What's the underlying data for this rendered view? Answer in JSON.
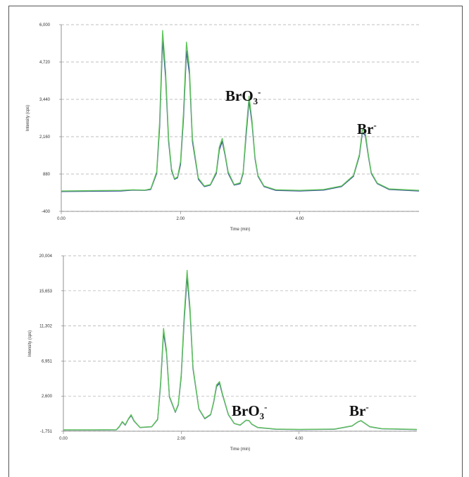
{
  "chart_data": [
    {
      "type": "line",
      "x": [
        0,
        0.5,
        1.0,
        1.2,
        1.4,
        1.5,
        1.6,
        1.65,
        1.7,
        1.75,
        1.8,
        1.85,
        1.9,
        1.95,
        2.0,
        2.05,
        2.1,
        2.15,
        2.2,
        2.3,
        2.4,
        2.5,
        2.6,
        2.65,
        2.7,
        2.75,
        2.8,
        2.9,
        3.0,
        3.05,
        3.1,
        3.15,
        3.2,
        3.25,
        3.3,
        3.4,
        3.6,
        4.0,
        4.4,
        4.7,
        4.9,
        5.0,
        5.05,
        5.1,
        5.15,
        5.2,
        5.3,
        5.5,
        6.0
      ],
      "series": [
        {
          "color": "#3a4f9c",
          "values": [
            280,
            290,
            300,
            330,
            320,
            350,
            900,
            2500,
            5500,
            4200,
            2000,
            1000,
            700,
            750,
            1200,
            2800,
            5100,
            4300,
            2000,
            700,
            450,
            500,
            900,
            1700,
            2000,
            1500,
            900,
            500,
            550,
            900,
            2200,
            3400,
            2600,
            1400,
            800,
            450,
            320,
            300,
            330,
            450,
            800,
            1500,
            2300,
            2200,
            1500,
            900,
            550,
            350,
            300
          ]
        },
        {
          "color": "#5fc45a",
          "values": [
            300,
            310,
            320,
            340,
            330,
            370,
            950,
            2700,
            5800,
            4400,
            2100,
            1050,
            720,
            780,
            1300,
            3000,
            5400,
            4500,
            2100,
            740,
            470,
            520,
            950,
            1800,
            2100,
            1550,
            950,
            520,
            580,
            950,
            2350,
            3550,
            2700,
            1450,
            830,
            470,
            340,
            320,
            350,
            470,
            830,
            1550,
            2400,
            2300,
            1550,
            930,
            570,
            370,
            320
          ]
        }
      ],
      "xlim": [
        0,
        6
      ],
      "xticks": [
        {
          "value": 0,
          "label": "0.00"
        },
        {
          "value": 2,
          "label": "2.00"
        },
        {
          "value": 4,
          "label": "4.00"
        }
      ],
      "ylim": [
        -400,
        6000
      ],
      "yticks": [
        -400,
        880,
        {
          "value": 2160,
          "label": "2,160"
        },
        {
          "value": 3440,
          "label": "3,440"
        },
        {
          "value": 4720,
          "label": "4,720"
        },
        {
          "value": 6000,
          "label": "6,000"
        }
      ],
      "xlabel": "Time (min)",
      "ylabel": "Intensity (cps)",
      "grid": true,
      "annotations": [
        {
          "text": "BrO",
          "sub": "3",
          "sup": "-"
        },
        {
          "text": "Br",
          "sup": "-"
        }
      ]
    },
    {
      "type": "line",
      "x": [
        0,
        0.5,
        0.9,
        0.95,
        1.0,
        1.05,
        1.1,
        1.15,
        1.2,
        1.3,
        1.5,
        1.6,
        1.65,
        1.7,
        1.75,
        1.8,
        1.9,
        1.95,
        2.0,
        2.05,
        2.1,
        2.15,
        2.2,
        2.3,
        2.4,
        2.5,
        2.55,
        2.6,
        2.65,
        2.7,
        2.8,
        2.9,
        3.0,
        3.05,
        3.1,
        3.15,
        3.2,
        3.3,
        3.6,
        4.0,
        4.6,
        4.9,
        5.0,
        5.05,
        5.1,
        5.2,
        5.4,
        6.0
      ],
      "series": [
        {
          "color": "#3a4f9c",
          "values": [
            -1600,
            -1600,
            -1580,
            -1200,
            -600,
            -1000,
            -300,
            200,
            -500,
            -1300,
            -1200,
            -300,
            4000,
            10500,
            8000,
            2500,
            600,
            1500,
            5000,
            12000,
            17500,
            13000,
            6000,
            1000,
            -200,
            300,
            1800,
            3800,
            4200,
            2800,
            300,
            -800,
            -1000,
            -700,
            -400,
            -450,
            -900,
            -1300,
            -1500,
            -1550,
            -1500,
            -1100,
            -600,
            -450,
            -700,
            -1200,
            -1450,
            -1550
          ]
        },
        {
          "color": "#5fc45a",
          "values": [
            -1580,
            -1580,
            -1560,
            -1150,
            -550,
            -950,
            -250,
            300,
            -450,
            -1280,
            -1180,
            -250,
            4300,
            11000,
            8300,
            2600,
            650,
            1600,
            5300,
            12600,
            18200,
            13500,
            6200,
            1050,
            -150,
            350,
            1900,
            4000,
            4400,
            2900,
            350,
            -780,
            -980,
            -680,
            -380,
            -430,
            -880,
            -1280,
            -1480,
            -1530,
            -1480,
            -1080,
            -580,
            -430,
            -680,
            -1180,
            -1430,
            -1530
          ]
        }
      ],
      "xlim": [
        0,
        6
      ],
      "xticks": [
        {
          "value": 0,
          "label": "0.00"
        },
        {
          "value": 2,
          "label": "2.00"
        },
        {
          "value": 4,
          "label": "4.00"
        }
      ],
      "ylim": [
        -1751,
        20004
      ],
      "yticks": [
        {
          "value": -1751,
          "label": "-1,751"
        },
        {
          "value": 2600,
          "label": "2,600"
        },
        {
          "value": 6951,
          "label": "6,951"
        },
        {
          "value": 11302,
          "label": "11,302"
        },
        {
          "value": 15653,
          "label": "15,653"
        },
        {
          "value": 20004,
          "label": "20,004"
        }
      ],
      "xlabel": "Time (min)",
      "ylabel": "Intensity (cps)",
      "grid": true,
      "annotations": [
        {
          "text": "BrO",
          "sub": "3",
          "sup": "-"
        },
        {
          "text": "Br",
          "sup": "-"
        }
      ]
    }
  ]
}
